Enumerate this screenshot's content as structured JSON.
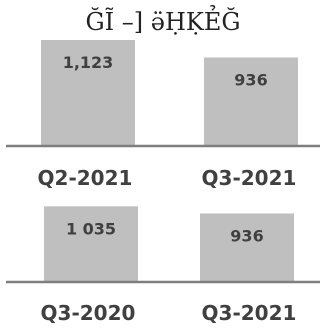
{
  "chart_data": [
    {
      "type": "bar",
      "title": "ĞĨ –] ӛḤḲẺĞ",
      "categories": [
        "Q2-2021",
        "Q3-2021"
      ],
      "values": [
        1123,
        936
      ],
      "value_labels": [
        "1,123",
        "936"
      ],
      "ylim": [
        0,
        1150
      ],
      "grid": false,
      "bar_color": "#bfbfbf",
      "baseline_color": "#7f7f7f"
    },
    {
      "type": "bar",
      "title": "",
      "categories": [
        "Q3-2020",
        "Q3-2021"
      ],
      "values": [
        1035,
        936
      ],
      "value_labels": [
        "1 035",
        "936"
      ],
      "ylim": [
        0,
        1150
      ],
      "grid": false,
      "bar_color": "#bfbfbf",
      "baseline_color": "#7f7f7f"
    }
  ]
}
